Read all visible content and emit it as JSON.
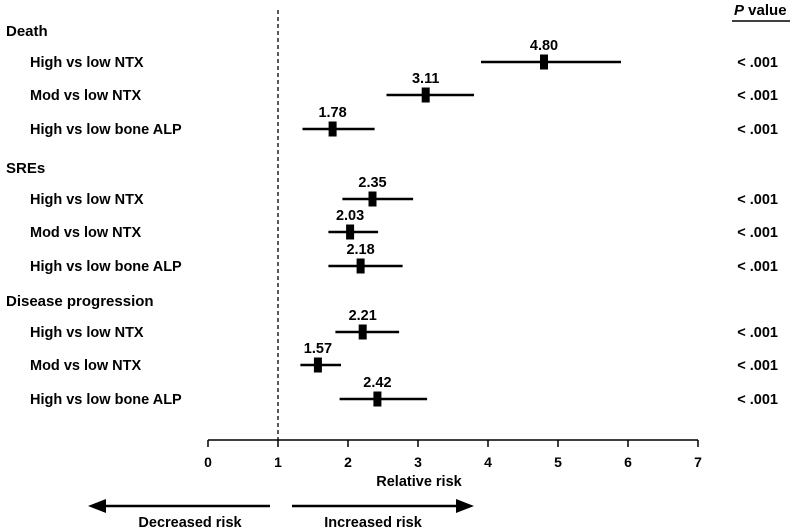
{
  "pvalue_header": {
    "prefix": "P",
    "suffix": " value"
  },
  "chart_data": {
    "type": "forest",
    "xlabel": "Relative risk",
    "xlim": [
      0,
      7
    ],
    "ticks": [
      0,
      1,
      2,
      3,
      4,
      5,
      6,
      7
    ],
    "reference_line": 1,
    "groups": [
      {
        "name": "Death",
        "rows": [
          {
            "label": "High vs low NTX",
            "estimate": 4.8,
            "estimate_label": "4.80",
            "ci": [
              3.9,
              5.9
            ],
            "p": "< .001"
          },
          {
            "label": "Mod vs low NTX",
            "estimate": 3.11,
            "estimate_label": "3.11",
            "ci": [
              2.55,
              3.8
            ],
            "p": "< .001"
          },
          {
            "label": "High vs low bone ALP",
            "estimate": 1.78,
            "estimate_label": "1.78",
            "ci": [
              1.35,
              2.38
            ],
            "p": "< .001"
          }
        ]
      },
      {
        "name": "SREs",
        "rows": [
          {
            "label": "High vs low NTX",
            "estimate": 2.35,
            "estimate_label": "2.35",
            "ci": [
              1.92,
              2.93
            ],
            "p": "< .001"
          },
          {
            "label": "Mod vs low NTX",
            "estimate": 2.03,
            "estimate_label": "2.03",
            "ci": [
              1.72,
              2.43
            ],
            "p": "< .001"
          },
          {
            "label": "High vs low bone ALP",
            "estimate": 2.18,
            "estimate_label": "2.18",
            "ci": [
              1.72,
              2.78
            ],
            "p": "< .001"
          }
        ]
      },
      {
        "name": "Disease progression",
        "rows": [
          {
            "label": "High vs low NTX",
            "estimate": 2.21,
            "estimate_label": "2.21",
            "ci": [
              1.82,
              2.73
            ],
            "p": "< .001"
          },
          {
            "label": "Mod vs low NTX",
            "estimate": 1.57,
            "estimate_label": "1.57",
            "ci": [
              1.32,
              1.9
            ],
            "p": "< .001"
          },
          {
            "label": "High vs low bone ALP",
            "estimate": 2.42,
            "estimate_label": "2.42",
            "ci": [
              1.88,
              3.13
            ],
            "p": "< .001"
          }
        ]
      }
    ],
    "direction_labels": {
      "left": "Decreased risk",
      "right": "Increased risk"
    }
  }
}
